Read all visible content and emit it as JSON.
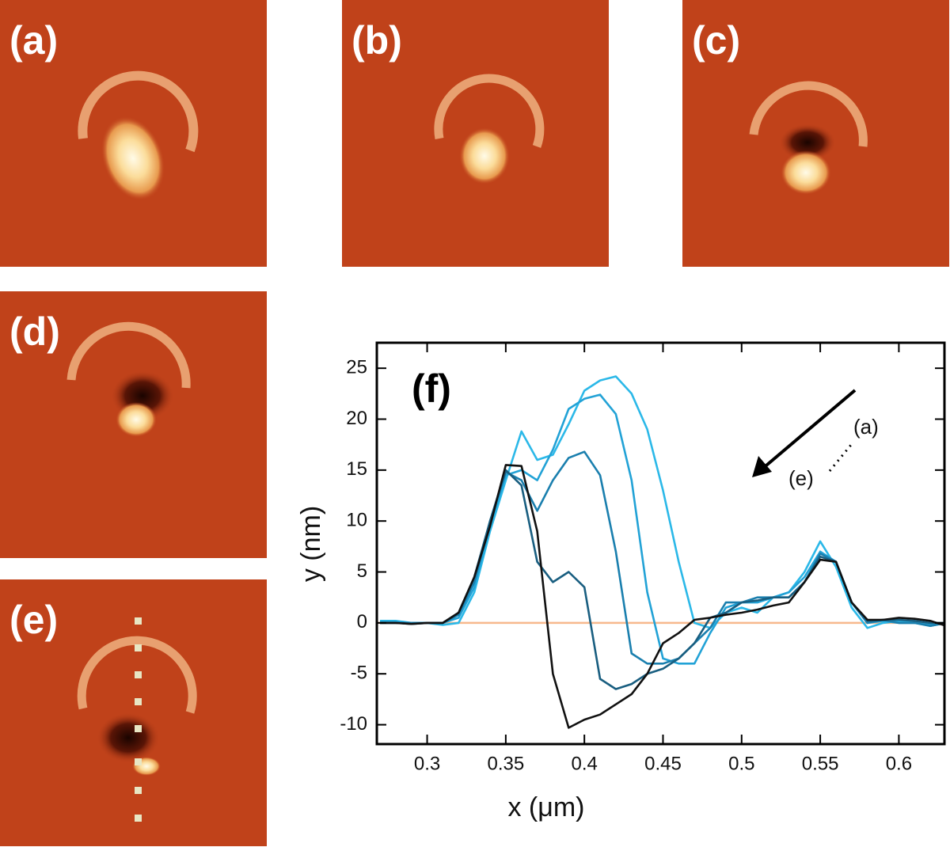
{
  "panels": [
    "(a)",
    "(b)",
    "(c)",
    "(d)",
    "(e)"
  ],
  "chart_data": {
    "type": "line",
    "panel_label": "(f)",
    "xlabel": "x (μm)",
    "ylabel": "y (nm)",
    "annotations": [
      "(a)",
      "(e)"
    ],
    "xlim": [
      0.268,
      0.629
    ],
    "ylim": [
      -11.9,
      27.5
    ],
    "xticks": [
      0.3,
      0.35,
      0.4,
      0.45,
      0.5,
      0.55,
      0.6
    ],
    "yticks": [
      -10,
      -5,
      0,
      5,
      10,
      15,
      20,
      25
    ],
    "hline": {
      "value": 0,
      "color": "#f7b98d"
    },
    "x": [
      0.27,
      0.28,
      0.29,
      0.3,
      0.31,
      0.32,
      0.33,
      0.34,
      0.35,
      0.36,
      0.37,
      0.38,
      0.39,
      0.4,
      0.41,
      0.42,
      0.43,
      0.44,
      0.45,
      0.46,
      0.47,
      0.48,
      0.49,
      0.5,
      0.51,
      0.52,
      0.53,
      0.54,
      0.55,
      0.56,
      0.57,
      0.58,
      0.59,
      0.6,
      0.61,
      0.62,
      0.63
    ],
    "series": [
      {
        "color": "#2bb8e8",
        "values": [
          0.2,
          0.2,
          0,
          0,
          -0.2,
          0,
          3,
          9,
          14,
          18.8,
          16,
          16.5,
          19.5,
          22.8,
          23.8,
          24.2,
          22.5,
          19,
          13,
          6,
          0,
          -0.5,
          1,
          1.5,
          1,
          2.5,
          3,
          5,
          8,
          5.5,
          1.5,
          -0.5,
          0,
          0.2,
          0,
          -0.3,
          0
        ]
      },
      {
        "color": "#22a2d6",
        "values": [
          0.1,
          0.1,
          0,
          0,
          0,
          0.5,
          3.5,
          9.5,
          14.5,
          15,
          14,
          17,
          21,
          22,
          22.4,
          20.5,
          14,
          3,
          -3.5,
          -4,
          -4,
          -1,
          1.5,
          2,
          2,
          2.5,
          3,
          4.5,
          7,
          6,
          2,
          0,
          0.2,
          0,
          0,
          -0.2,
          0
        ]
      },
      {
        "color": "#1a7fae",
        "values": [
          0,
          0,
          0,
          0,
          0,
          0.8,
          4,
          10,
          14.8,
          14,
          11,
          14,
          16.2,
          16.8,
          14.5,
          7,
          -3,
          -4,
          -4,
          -3.5,
          -2,
          -0.5,
          2,
          2,
          2.5,
          2.5,
          2.5,
          4,
          6.8,
          6,
          2,
          0,
          0.3,
          0,
          0,
          -0.3,
          0
        ]
      },
      {
        "color": "#195e80",
        "values": [
          0,
          0,
          -0.1,
          0,
          0,
          1,
          4.5,
          10,
          15,
          13.5,
          6,
          4,
          5,
          3.5,
          -5.5,
          -6.5,
          -6,
          -5,
          -4.5,
          -3.5,
          -2,
          0.5,
          1,
          2,
          2.2,
          2.5,
          2.5,
          4,
          6.5,
          6,
          2,
          0.2,
          0.3,
          0.3,
          0.2,
          0,
          0
        ]
      },
      {
        "color": "#111111",
        "values": [
          0,
          0,
          -0.1,
          0,
          0,
          1,
          4.5,
          9.5,
          15.5,
          15.4,
          9,
          -5,
          -10.3,
          -9.5,
          -9,
          -8,
          -7,
          -5,
          -2,
          -1,
          0.3,
          0.5,
          0.8,
          1,
          1.3,
          1.7,
          2,
          4,
          6.2,
          6,
          2,
          0.3,
          0.3,
          0.5,
          0.4,
          0.2,
          -0.3
        ]
      }
    ]
  }
}
